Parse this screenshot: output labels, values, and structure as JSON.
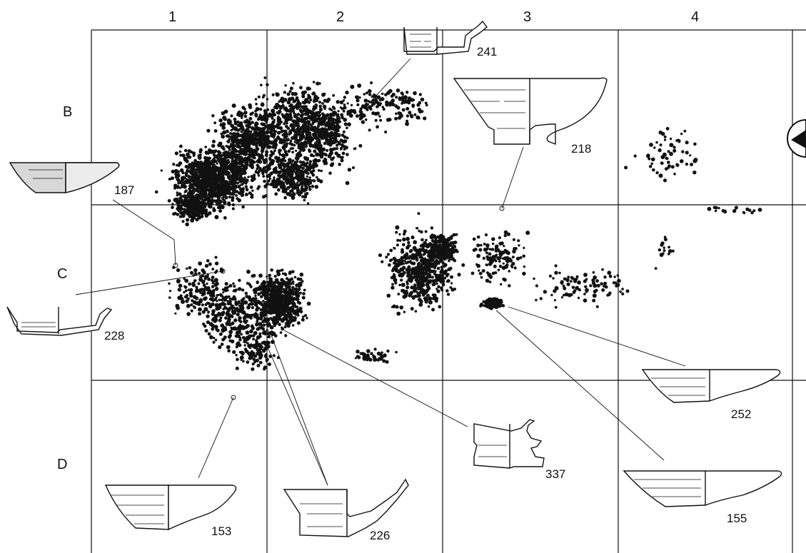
{
  "grid": {
    "columns": [
      "1",
      "2",
      "3",
      "4"
    ],
    "rows": [
      "B",
      "C",
      "D"
    ]
  },
  "vessels": [
    {
      "id": "241",
      "type": "footed-dish"
    },
    {
      "id": "218",
      "type": "footed-bowl"
    },
    {
      "id": "187",
      "type": "shallow-bowl-shaded"
    },
    {
      "id": "228",
      "type": "footed-dish"
    },
    {
      "id": "252",
      "type": "shallow-bowl"
    },
    {
      "id": "337",
      "type": "high-foot"
    },
    {
      "id": "155",
      "type": "shallow-bowl"
    },
    {
      "id": "153",
      "type": "deep-bowl"
    },
    {
      "id": "226",
      "type": "footed-dish"
    }
  ],
  "colors": {
    "ink": "#111111",
    "background": "#ffffff"
  }
}
